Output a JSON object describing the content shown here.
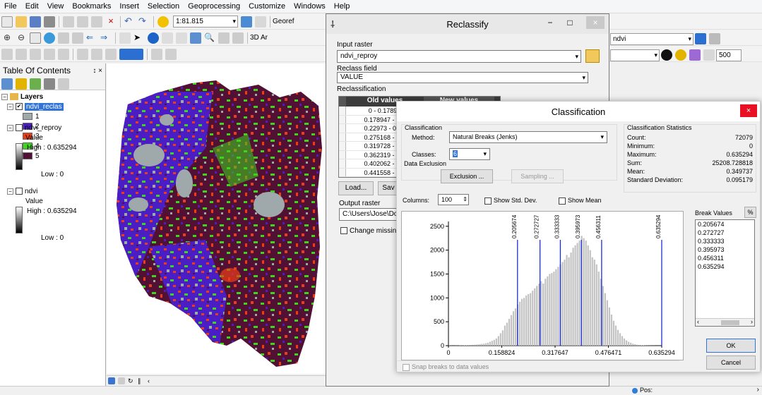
{
  "menu": [
    "File",
    "Edit",
    "View",
    "Bookmarks",
    "Insert",
    "Selection",
    "Geoprocessing",
    "Customize",
    "Windows",
    "Help"
  ],
  "toolbar": {
    "scale": "1:81.815",
    "georef_label": "Georef",
    "3d_label": "3D Ar",
    "layer_combo": "ndvi",
    "resolution": "500"
  },
  "toc": {
    "title": "Table Of Contents",
    "pin": "↕ ×",
    "layers_label": "Layers",
    "reclas_layer": "ndvi_reclas",
    "classes": [
      {
        "label": "1",
        "color": "#9fa8ab"
      },
      {
        "label": "2",
        "color": "#4b1ec5"
      },
      {
        "label": "3",
        "color": "#ec3d17"
      },
      {
        "label": "4",
        "color": "#3cd61a"
      },
      {
        "label": "5",
        "color": "#521034"
      }
    ],
    "reproy_layer": "ndvi_reproy",
    "reproy_value": "Value",
    "reproy_high": "High : 0.635294",
    "reproy_low": "Low : 0",
    "ndvi_layer": "ndvi",
    "ndvi_value": "Value",
    "ndvi_high": "High : 0.635294",
    "ndvi_low": "Low : 0"
  },
  "reclassify": {
    "title": "Reclassify",
    "input_raster_label": "Input raster",
    "input_raster": "ndvi_reproy",
    "reclass_field_label": "Reclass field",
    "reclass_field": "VALUE",
    "reclassification_label": "Reclassification",
    "col_old": "Old values",
    "col_new": "New values",
    "old_values": [
      "0 - 0.17894",
      "0.178947 - 0.2",
      "0.22973 - 0.27",
      "0.275168 - 0.3",
      "0.319728 - 0.3",
      "0.362319 - 0.4",
      "0.402062 - 0.4",
      "0.441558 - 0.4"
    ],
    "load_btn": "Load...",
    "save_btn": "Sav",
    "output_label": "Output raster",
    "output_value": "C:\\Users\\Jose\\Docu",
    "change_missing": "Change missing v"
  },
  "classification": {
    "title": "Classification",
    "group_label": "Classification",
    "method_label": "Method:",
    "method_value": "Natural Breaks (Jenks)",
    "classes_label": "Classes:",
    "classes_value": "6",
    "data_exclusion_label": "Data Exclusion",
    "exclusion_btn": "Exclusion ...",
    "sampling_btn": "Sampling ...",
    "columns_label": "Columns:",
    "columns_value": "100",
    "show_std": "Show Std. Dev.",
    "show_mean": "Show Mean",
    "stats_label": "Classification Statistics",
    "stats": [
      {
        "k": "Count:",
        "v": "72079"
      },
      {
        "k": "Minimum:",
        "v": "0"
      },
      {
        "k": "Maximum:",
        "v": "0.635294"
      },
      {
        "k": "Sum:",
        "v": "25208.728818"
      },
      {
        "k": "Mean:",
        "v": "0.349737"
      },
      {
        "k": "Standard Deviation:",
        "v": "0.095179"
      }
    ],
    "break_values_label": "Break Values",
    "pct_btn": "%",
    "break_values": [
      "0.205674",
      "0.272727",
      "0.333333",
      "0.395973",
      "0.456311",
      "0.635294"
    ],
    "ok_btn": "OK",
    "cancel_btn": "Cancel",
    "snap_label": "Snap breaks to data values"
  },
  "chart_data": {
    "type": "bar",
    "title": "",
    "xlim": [
      0,
      0.635294
    ],
    "ylim": [
      0,
      2600
    ],
    "xticks": [
      "0",
      "0.158824",
      "0.317647",
      "0.476471",
      "0.635294"
    ],
    "yticks": [
      "0",
      "500",
      "1000",
      "1500",
      "2000",
      "2500"
    ],
    "breaks": [
      0.205674,
      0.272727,
      0.333333,
      0.395973,
      0.456311,
      0.635294
    ],
    "break_labels": [
      "0.205674",
      "0.272727",
      "0.333333",
      "0.395973",
      "0.456311",
      "0.635294"
    ],
    "bin_heights": [
      5,
      3,
      2,
      4,
      3,
      6,
      5,
      8,
      10,
      12,
      15,
      18,
      20,
      25,
      28,
      35,
      40,
      50,
      60,
      80,
      100,
      120,
      150,
      200,
      260,
      320,
      420,
      480,
      560,
      640,
      720,
      780,
      860,
      920,
      980,
      1000,
      1050,
      1080,
      1100,
      1150,
      1200,
      1250,
      1300,
      1350,
      1300,
      1400,
      1450,
      1500,
      1520,
      1550,
      1600,
      1650,
      1700,
      1750,
      1800,
      1900,
      1850,
      1950,
      2050,
      2100,
      2150,
      2200,
      2300,
      2250,
      2200,
      2100,
      2000,
      1850,
      1800,
      1700,
      1550,
      1400,
      1250,
      1100,
      950,
      800,
      650,
      520,
      420,
      330,
      260,
      200,
      150,
      110,
      80,
      60,
      40,
      30,
      20,
      15,
      10,
      8,
      5,
      4,
      3,
      2,
      2,
      1,
      1,
      1
    ]
  },
  "status": {
    "pos_label": "Pos:"
  }
}
